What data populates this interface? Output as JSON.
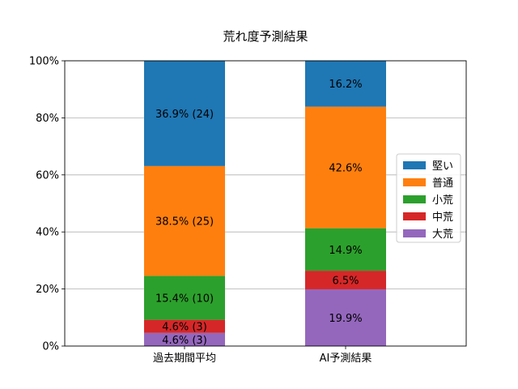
{
  "chart_data": {
    "type": "bar",
    "stacked": true,
    "title": "荒れ度予測結果",
    "xlabel": "",
    "ylabel": "",
    "categories": [
      "過去期間平均",
      "AI予測結果"
    ],
    "ylim": [
      0,
      100
    ],
    "yticks": [
      "0%",
      "20%",
      "40%",
      "60%",
      "80%",
      "100%"
    ],
    "grid": "y",
    "legend_position": "right",
    "series": [
      {
        "name": "大荒",
        "color": "#9467bd",
        "values": [
          4.6,
          19.9
        ],
        "labels": [
          "4.6% (3)",
          "19.9%"
        ]
      },
      {
        "name": "中荒",
        "color": "#d62728",
        "values": [
          4.6,
          6.5
        ],
        "labels": [
          "4.6% (3)",
          "6.5%"
        ]
      },
      {
        "name": "小荒",
        "color": "#2ca02c",
        "values": [
          15.4,
          14.9
        ],
        "labels": [
          "15.4% (10)",
          "14.9%"
        ]
      },
      {
        "name": "普通",
        "color": "#ff7f0e",
        "values": [
          38.5,
          42.6
        ],
        "labels": [
          "38.5% (25)",
          "42.6%"
        ]
      },
      {
        "name": "堅い",
        "color": "#1f77b4",
        "values": [
          36.9,
          16.2
        ],
        "labels": [
          "36.9% (24)",
          "16.2%"
        ]
      }
    ],
    "legend_order": [
      "堅い",
      "普通",
      "小荒",
      "中荒",
      "大荒"
    ]
  }
}
